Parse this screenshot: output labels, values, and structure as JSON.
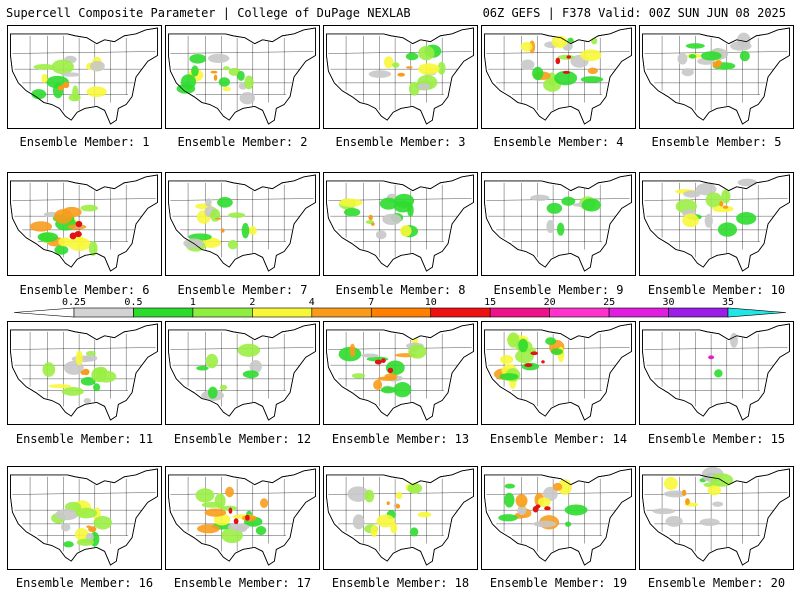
{
  "header": {
    "title": "Supercell Composite Parameter | College of DuPage NEXLAB",
    "run_info": "06Z GEFS | F378 Valid: 00Z SUN JUN 08 2025"
  },
  "colorbar": {
    "ticks": [
      "0.25",
      "0.5",
      "1",
      "2",
      "4",
      "7",
      "10",
      "15",
      "20",
      "25",
      "30",
      "35"
    ],
    "colors": [
      "#d3d3d3",
      "#2ddb2d",
      "#90ee40",
      "#f7f73a",
      "#f99c1c",
      "#ff7f00",
      "#ee1111",
      "#ee1189",
      "#ff33cc",
      "#e01ee0",
      "#9a1ee8",
      "#b04edc",
      "#22e6e6"
    ]
  },
  "map_colors": {
    "land": "#ffffff",
    "border": "#000000",
    "grey": "#c8c8c8",
    "green": "#2ddb2d",
    "lightgreen": "#9aee44",
    "yellow": "#f7f73a",
    "orange": "#f99c1c",
    "red": "#e01414",
    "magenta": "#e020c8"
  },
  "members": [
    {
      "label": "Ensemble Member: 1",
      "intensity": "moderate"
    },
    {
      "label": "Ensemble Member: 2",
      "intensity": "moderate"
    },
    {
      "label": "Ensemble Member: 3",
      "intensity": "moderate"
    },
    {
      "label": "Ensemble Member: 4",
      "intensity": "high"
    },
    {
      "label": "Ensemble Member: 5",
      "intensity": "moderate"
    },
    {
      "label": "Ensemble Member: 6",
      "intensity": "high"
    },
    {
      "label": "Ensemble Member: 7",
      "intensity": "moderate"
    },
    {
      "label": "Ensemble Member: 8",
      "intensity": "moderate"
    },
    {
      "label": "Ensemble Member: 9",
      "intensity": "low"
    },
    {
      "label": "Ensemble Member: 10",
      "intensity": "moderate"
    },
    {
      "label": "Ensemble Member: 11",
      "intensity": "moderate"
    },
    {
      "label": "Ensemble Member: 12",
      "intensity": "low"
    },
    {
      "label": "Ensemble Member: 13",
      "intensity": "high"
    },
    {
      "label": "Ensemble Member: 14",
      "intensity": "high"
    },
    {
      "label": "Ensemble Member: 15",
      "intensity": "minimal"
    },
    {
      "label": "Ensemble Member: 16",
      "intensity": "moderate"
    },
    {
      "label": "Ensemble Member: 17",
      "intensity": "high"
    },
    {
      "label": "Ensemble Member: 18",
      "intensity": "moderate"
    },
    {
      "label": "Ensemble Member: 19",
      "intensity": "high"
    },
    {
      "label": "Ensemble Member: 20",
      "intensity": "moderate"
    }
  ]
}
